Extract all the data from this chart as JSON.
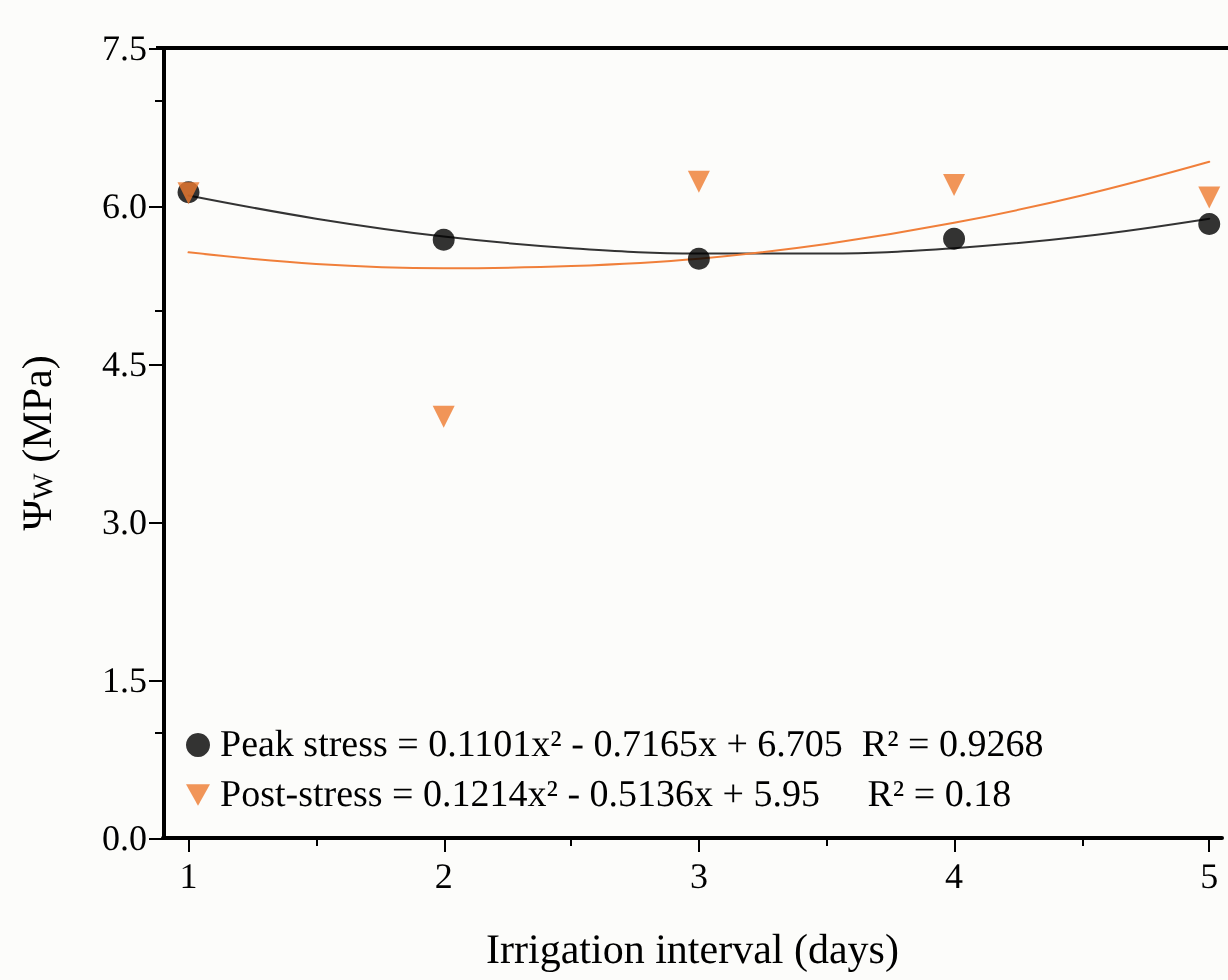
{
  "chart_data": {
    "type": "scatter",
    "xlabel": "Irrigation interval (days)",
    "ylabel": "Ψ$_{W}$ (MPa)",
    "xlim": [
      0.9,
      5.05
    ],
    "xticks": [
      1,
      2,
      3,
      4,
      5
    ],
    "ylim": [
      0,
      7.5
    ],
    "yticks": [
      {
        "value": 0,
        "label": "0.0"
      },
      {
        "value": 1.5,
        "label": "1.5"
      },
      {
        "value": 3,
        "label": "3.0"
      },
      {
        "value": 4.5,
        "label": "4.5"
      },
      {
        "value": 6,
        "label": "6.0"
      },
      {
        "value": 7.5,
        "label": "7.5"
      }
    ],
    "grid": false,
    "legend": "bottom left",
    "series": [
      {
        "type": "line",
        "color": "#333333",
        "marker": "none",
        "line_style": "solid",
        "x": [
          1,
          1.5,
          2,
          2.5,
          3,
          3.5,
          4,
          4.5,
          5
        ],
        "values": [
          6.1,
          5.88,
          5.71,
          5.6,
          5.55,
          5.55,
          5.6,
          5.71,
          5.88
        ]
      },
      {
        "type": "line",
        "color": "#f07f3a",
        "marker": "none",
        "line_style": "solid",
        "x": [
          1,
          1.5,
          2,
          2.5,
          3,
          3.5,
          4,
          4.5,
          5
        ],
        "values": [
          5.56,
          5.45,
          5.41,
          5.43,
          5.5,
          5.64,
          5.84,
          6.1,
          6.42
        ]
      },
      {
        "name": "Peak stress = 0.1101x² - 0.7165x + 6.705  R² = 0.9268",
        "color": "#000000",
        "marker": "circle",
        "x": [
          1,
          2,
          3,
          4,
          5
        ],
        "values": [
          6.13,
          5.68,
          5.5,
          5.69,
          5.83
        ]
      },
      {
        "name": "Post-stress = 0.1214x² - 0.5136x + 5.95     R² = 0.18",
        "color": "#ee7a2f",
        "marker": "triangle",
        "x": [
          1,
          2,
          3,
          4,
          5
        ],
        "values": [
          6.12,
          4.0,
          6.23,
          6.2,
          6.08
        ]
      }
    ]
  }
}
